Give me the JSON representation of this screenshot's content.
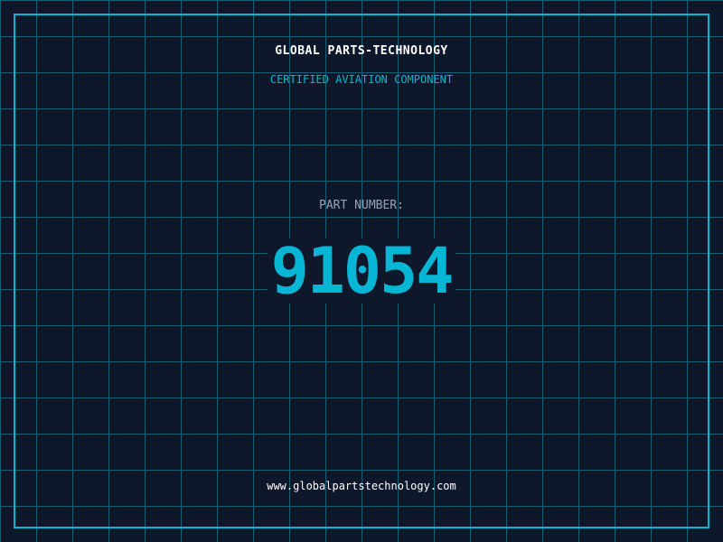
{
  "header": {
    "title": "GLOBAL PARTS-TECHNOLOGY",
    "subtitle": "CERTIFIED AVIATION COMPONENT"
  },
  "part": {
    "label": "PART NUMBER:",
    "number": "91054"
  },
  "footer": {
    "url": "www.globalpartstechnology.com"
  },
  "colors": {
    "background": "#0f172a",
    "grid": "#155e75",
    "accent": "#06b6d4"
  }
}
